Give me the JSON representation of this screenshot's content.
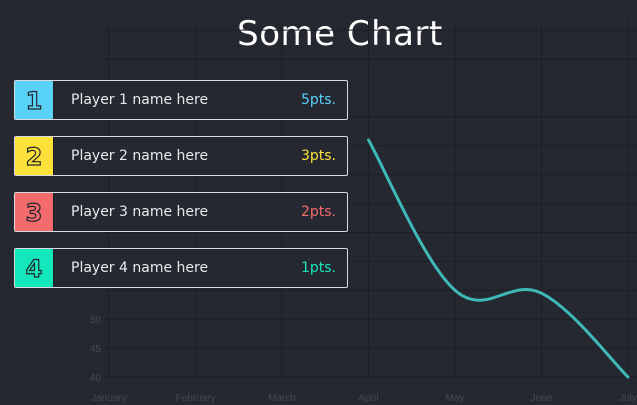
{
  "title": "Some Chart",
  "colors": {
    "background": "#252830",
    "line": "#3fb8b8",
    "rank1": "#59d2f7",
    "rank2": "#fbe13a",
    "rank3": "#f36b6d",
    "rank4": "#15e7bd"
  },
  "leaderboard": [
    {
      "rank": "1",
      "name": "Player 1 name here",
      "points": "5pts.",
      "color": "#59d2f7"
    },
    {
      "rank": "2",
      "name": "Player 2 name here",
      "points": "3pts.",
      "color": "#fbe13a"
    },
    {
      "rank": "3",
      "name": "Player 3 name here",
      "points": "2pts.",
      "color": "#f36b6d"
    },
    {
      "rank": "4",
      "name": "Player 4 name here",
      "points": "1pts.",
      "color": "#15e7bd"
    }
  ],
  "chart_data": {
    "type": "line",
    "title": "",
    "xlabel": "",
    "ylabel": "",
    "categories": [
      "January",
      "February",
      "March",
      "April",
      "May",
      "June",
      "July"
    ],
    "series": [
      {
        "values": [
          null,
          null,
          null,
          81,
          55,
          54.5,
          40
        ]
      }
    ],
    "y_ticks": [
      40,
      45,
      50
    ],
    "ylim": [
      40,
      81
    ],
    "grid": true,
    "legend": "none"
  }
}
